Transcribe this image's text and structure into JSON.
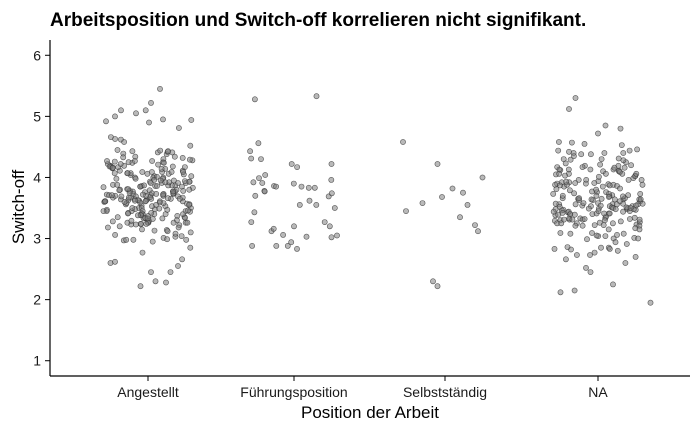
{
  "chart_data": {
    "type": "scatter",
    "subtype": "jitter strip plot",
    "title": "Arbeitsposition und Switch-off korrelieren nicht signifikant.",
    "xlabel": "Position der Arbeit",
    "ylabel": "Switch-off",
    "categories": [
      "Angestellt",
      "Führungsposition",
      "Selbstständig",
      "NA"
    ],
    "y_ticks": [
      1,
      2,
      3,
      4,
      5,
      6
    ],
    "ylim": [
      0.75,
      6.25
    ],
    "grid": false,
    "point_color": "#808080",
    "point_edge_color": "#333333",
    "point_opacity": 0.55,
    "groups": [
      {
        "category": "Angestellt",
        "approx_count": 260,
        "visible_points": [
          [
            -0.25,
            2.6
          ],
          [
            -0.22,
            2.62
          ],
          [
            0.05,
            2.3
          ],
          [
            -0.05,
            2.22
          ],
          [
            0.02,
            2.45
          ],
          [
            -0.08,
            5.05
          ],
          [
            -0.22,
            5.0
          ],
          [
            0.02,
            5.22
          ],
          [
            0.08,
            5.45
          ],
          [
            -0.28,
            4.92
          ],
          [
            -0.18,
            5.1
          ],
          [
            0.1,
            4.95
          ],
          [
            0.15,
            2.45
          ],
          [
            0.2,
            2.55
          ],
          [
            0.12,
            2.28
          ]
        ],
        "center_y": 3.75,
        "min_y": 2.22,
        "max_y": 5.45
      },
      {
        "category": "Führungsposition",
        "approx_count": 45,
        "visible_points": [
          [
            0.15,
            5.33
          ],
          [
            -0.22,
            4.3
          ],
          [
            0.25,
            4.22
          ],
          [
            0.05,
            3.85
          ],
          [
            0.0,
            3.2
          ],
          [
            -0.15,
            3.12
          ],
          [
            0.25,
            3.02
          ],
          [
            0.02,
            2.83
          ]
        ],
        "center_y": 3.7,
        "min_y": 2.83,
        "max_y": 5.33
      },
      {
        "category": "Selbstständig",
        "approx_count": 14,
        "points": [
          [
            -0.28,
            4.58
          ],
          [
            -0.05,
            4.22
          ],
          [
            0.25,
            4.0
          ],
          [
            0.12,
            3.75
          ],
          [
            -0.02,
            3.68
          ],
          [
            -0.15,
            3.58
          ],
          [
            0.05,
            3.82
          ],
          [
            -0.26,
            3.45
          ],
          [
            0.1,
            3.35
          ],
          [
            0.2,
            3.22
          ],
          [
            0.15,
            3.55
          ],
          [
            -0.08,
            2.3
          ],
          [
            -0.05,
            2.22
          ],
          [
            0.22,
            3.12
          ]
        ]
      },
      {
        "category": "NA",
        "approx_count": 220,
        "visible_points": [
          [
            -0.15,
            5.3
          ],
          [
            0.05,
            4.85
          ],
          [
            0.15,
            4.8
          ],
          [
            0.0,
            4.72
          ],
          [
            0.35,
            1.95
          ],
          [
            0.1,
            2.25
          ],
          [
            -0.05,
            2.45
          ],
          [
            -0.08,
            2.52
          ]
        ],
        "center_y": 3.65,
        "min_y": 1.95,
        "max_y": 5.3
      }
    ]
  }
}
